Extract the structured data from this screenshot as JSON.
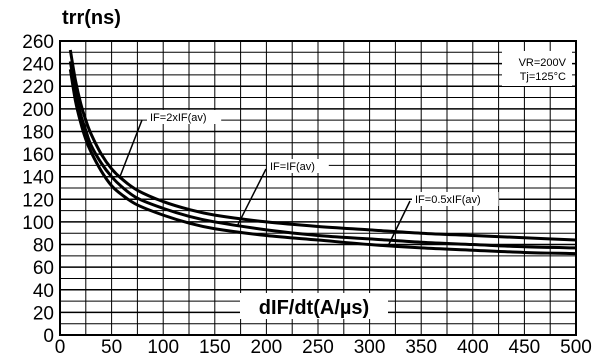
{
  "chart_data": {
    "type": "line",
    "ylabel": "trr(ns)",
    "xlabel": "dIF/dt(A/µs)",
    "xlim": [
      0,
      500
    ],
    "ylim": [
      0,
      260
    ],
    "x_ticks": [
      "0",
      "50",
      "100",
      "150",
      "200",
      "250",
      "300",
      "350",
      "400",
      "450",
      "500"
    ],
    "y_ticks": [
      "0",
      "20",
      "40",
      "60",
      "80",
      "100",
      "120",
      "140",
      "160",
      "180",
      "200",
      "220",
      "240",
      "260"
    ],
    "grid": true,
    "conditions": [
      "VR=200V",
      "Tj=125°C"
    ],
    "series": [
      {
        "name": "IF=2xIF(av)",
        "x": [
          10,
          15,
          20,
          25,
          30,
          40,
          50,
          60,
          75,
          100,
          125,
          150,
          200,
          250,
          300,
          350,
          400,
          450,
          500
        ],
        "values": [
          252,
          225,
          205,
          190,
          178,
          160,
          147,
          138,
          128,
          118,
          111,
          106,
          100,
          96,
          93,
          90,
          88,
          86,
          84
        ]
      },
      {
        "name": "IF=IF(av)",
        "x": [
          10,
          15,
          20,
          25,
          30,
          40,
          50,
          60,
          75,
          100,
          125,
          150,
          200,
          250,
          300,
          350,
          400,
          450,
          500
        ],
        "values": [
          242,
          215,
          195,
          181,
          168,
          152,
          140,
          131,
          121,
          112,
          105,
          100,
          93,
          88,
          85,
          82,
          80,
          78,
          77
        ]
      },
      {
        "name": "IF=0.5xIF(av)",
        "x": [
          10,
          15,
          20,
          25,
          30,
          40,
          50,
          60,
          75,
          100,
          125,
          150,
          200,
          250,
          300,
          350,
          400,
          450,
          500
        ],
        "values": [
          235,
          207,
          188,
          173,
          162,
          145,
          132,
          124,
          115,
          106,
          99,
          94,
          88,
          84,
          80,
          77,
          75,
          73,
          72
        ]
      }
    ]
  }
}
